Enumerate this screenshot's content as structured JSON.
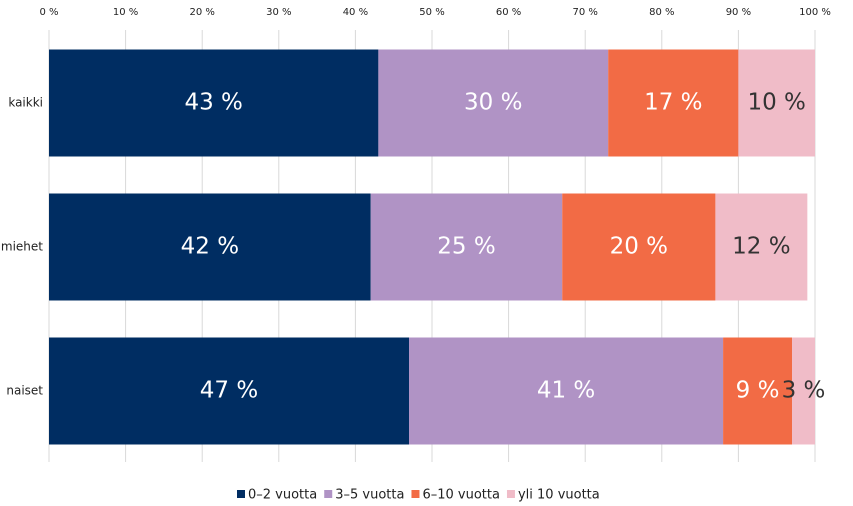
{
  "chart_data": {
    "type": "stacked-barh",
    "categories": [
      "kaikki",
      "miehet",
      "naiset"
    ],
    "series": [
      {
        "name": "0–2 vuotta",
        "color": "#002d62",
        "values": [
          43,
          42,
          47
        ],
        "value_labels": [
          "43 %",
          "42 %",
          "47 %"
        ]
      },
      {
        "name": "3–5 vuotta",
        "color": "#b093c5",
        "values": [
          30,
          25,
          41
        ],
        "value_labels": [
          "30 %",
          "25 %",
          "41 %"
        ]
      },
      {
        "name": "6–10 vuotta",
        "color": "#f26b45",
        "values": [
          17,
          20,
          9
        ],
        "value_labels": [
          "17 %",
          "20 %",
          "9 %"
        ]
      },
      {
        "name": "yli 10 vuotta",
        "color": "#f0bcc8",
        "values": [
          10,
          12,
          3
        ],
        "value_labels": [
          "10 %",
          "12 %",
          "3 %"
        ]
      }
    ],
    "xlim": [
      0,
      100
    ],
    "xticks": [
      {
        "value": 0,
        "label": "0 %"
      },
      {
        "value": 10,
        "label": "10 %"
      },
      {
        "value": 20,
        "label": "20 %"
      },
      {
        "value": 30,
        "label": "30 %"
      },
      {
        "value": 40,
        "label": "40 %"
      },
      {
        "value": 50,
        "label": "50 %"
      },
      {
        "value": 60,
        "label": "60 %"
      },
      {
        "value": 70,
        "label": "70 %"
      },
      {
        "value": 80,
        "label": "80 %"
      },
      {
        "value": 90,
        "label": "90 %"
      },
      {
        "value": 100,
        "label": "100 %"
      }
    ],
    "grid": true,
    "legend": "bottom"
  }
}
